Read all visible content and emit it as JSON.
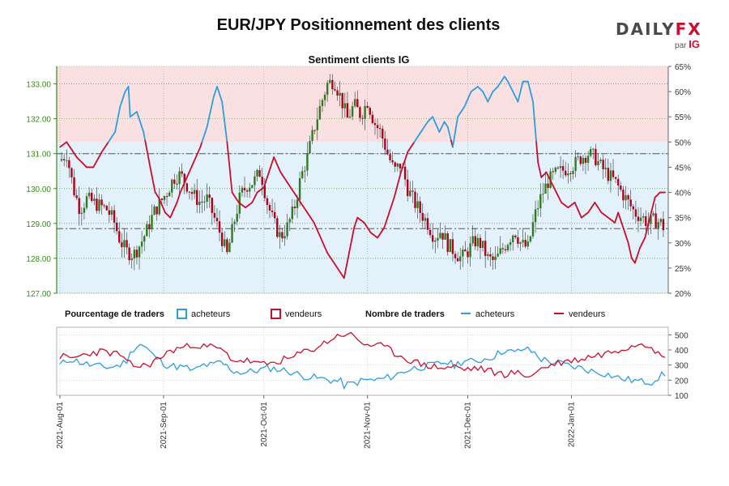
{
  "title": "EUR/JPY Positionnement des clients",
  "brand": {
    "word": "DAILY",
    "fx": "FX",
    "by": "par",
    "ig": "IG"
  },
  "colors": {
    "buyers": "#2d9ee0",
    "sellers": "#cc0e2c",
    "buy_fill": "#e3f1fb",
    "sell_fill": "#fbe0e2",
    "candle_up": "#2e7d1c",
    "candle_down": "#b3001b",
    "left_axis": "#3a8a1a"
  },
  "chart_data": [
    {
      "type": "candlestick+line",
      "subtitle": "Sentiment clients IG",
      "price_axis": {
        "ylim": [
          127,
          133.5
        ],
        "ticks": [
          "127.00",
          "128.00",
          "129.00",
          "130.00",
          "131.00",
          "132.00",
          "133.00"
        ]
      },
      "percent_axis": {
        "ylim": [
          20,
          65
        ],
        "ticks": [
          "20%",
          "25%",
          "30%",
          "35%",
          "40%",
          "45%",
          "50%",
          "55%",
          "60%",
          "65%"
        ]
      },
      "reference_lines": [
        {
          "value": 131.0,
          "style": "dash-dot"
        },
        {
          "value": 128.85,
          "style": "dash-dot"
        }
      ],
      "long_percent_key": [
        [
          0,
          49
        ],
        [
          4,
          50
        ],
        [
          10,
          47
        ],
        [
          16,
          45
        ],
        [
          20,
          45
        ],
        [
          25,
          48
        ],
        [
          27,
          49
        ],
        [
          33,
          52
        ],
        [
          36,
          57
        ],
        [
          39,
          60
        ],
        [
          41,
          61
        ],
        [
          42,
          55
        ],
        [
          46,
          56
        ],
        [
          50,
          52
        ],
        [
          54,
          45
        ],
        [
          57,
          40
        ],
        [
          59,
          39
        ],
        [
          63,
          36
        ],
        [
          66,
          35
        ],
        [
          70,
          38
        ],
        [
          72,
          40
        ],
        [
          76,
          43
        ],
        [
          80,
          46
        ],
        [
          84,
          49
        ],
        [
          88,
          53
        ],
        [
          92,
          59
        ],
        [
          94,
          61
        ],
        [
          97,
          58
        ],
        [
          100,
          50
        ],
        [
          103,
          40
        ],
        [
          107,
          38
        ],
        [
          111,
          37
        ],
        [
          115,
          38
        ],
        [
          118,
          40
        ],
        [
          122,
          41
        ],
        [
          126,
          45
        ],
        [
          128,
          47
        ],
        [
          132,
          44
        ],
        [
          136,
          42
        ],
        [
          140,
          40
        ],
        [
          144,
          38
        ],
        [
          148,
          36
        ],
        [
          152,
          34
        ],
        [
          156,
          31
        ],
        [
          160,
          28
        ],
        [
          164,
          26
        ],
        [
          168,
          24
        ],
        [
          170,
          23
        ],
        [
          173,
          28
        ],
        [
          176,
          33
        ],
        [
          178,
          35
        ],
        [
          182,
          34
        ],
        [
          186,
          32
        ],
        [
          190,
          31
        ],
        [
          194,
          33
        ],
        [
          200,
          39
        ],
        [
          204,
          44
        ],
        [
          208,
          48
        ],
        [
          212,
          50
        ],
        [
          216,
          52
        ],
        [
          220,
          54
        ],
        [
          223,
          55
        ],
        [
          227,
          52
        ],
        [
          230,
          54
        ],
        [
          232,
          53
        ],
        [
          235,
          49
        ],
        [
          238,
          55
        ],
        [
          242,
          57
        ],
        [
          246,
          60
        ],
        [
          250,
          61
        ],
        [
          253,
          60
        ],
        [
          256,
          58
        ],
        [
          259,
          60
        ],
        [
          262,
          61
        ],
        [
          266,
          63
        ],
        [
          268,
          62
        ],
        [
          271,
          60
        ],
        [
          274,
          58
        ],
        [
          277,
          62
        ],
        [
          280,
          62
        ],
        [
          283,
          58
        ],
        [
          286,
          46
        ],
        [
          288,
          43
        ],
        [
          291,
          44
        ],
        [
          294,
          42
        ],
        [
          297,
          40
        ],
        [
          300,
          38
        ],
        [
          304,
          37
        ],
        [
          308,
          38
        ],
        [
          312,
          35
        ],
        [
          316,
          36
        ],
        [
          320,
          38
        ],
        [
          324,
          36
        ],
        [
          328,
          35
        ],
        [
          332,
          34
        ],
        [
          334,
          36
        ],
        [
          337,
          33
        ],
        [
          340,
          30
        ],
        [
          342,
          27
        ],
        [
          344,
          26
        ],
        [
          347,
          29
        ],
        [
          350,
          31
        ],
        [
          353,
          35
        ],
        [
          356,
          39
        ],
        [
          359,
          40
        ],
        [
          362,
          40
        ]
      ],
      "candles_key": [
        [
          0,
          130.8
        ],
        [
          4,
          131.0
        ],
        [
          8,
          130.0
        ],
        [
          12,
          129.4
        ],
        [
          16,
          129.7
        ],
        [
          20,
          129.6
        ],
        [
          24,
          129.5
        ],
        [
          28,
          129.4
        ],
        [
          32,
          129.1
        ],
        [
          36,
          128.5
        ],
        [
          40,
          128.2
        ],
        [
          44,
          128.1
        ],
        [
          48,
          128.4
        ],
        [
          52,
          128.8
        ],
        [
          56,
          129.3
        ],
        [
          60,
          129.6
        ],
        [
          64,
          129.9
        ],
        [
          68,
          130.3
        ],
        [
          72,
          130.4
        ],
        [
          76,
          130.1
        ],
        [
          80,
          129.8
        ],
        [
          84,
          129.6
        ],
        [
          88,
          129.7
        ],
        [
          92,
          129.2
        ],
        [
          96,
          128.7
        ],
        [
          100,
          128.1
        ],
        [
          104,
          129.0
        ],
        [
          108,
          129.8
        ],
        [
          112,
          130.1
        ],
        [
          116,
          130.2
        ],
        [
          120,
          130.5
        ],
        [
          124,
          129.6
        ],
        [
          128,
          129.0
        ],
        [
          132,
          128.6
        ],
        [
          136,
          128.9
        ],
        [
          140,
          129.4
        ],
        [
          144,
          130.3
        ],
        [
          148,
          130.9
        ],
        [
          152,
          131.7
        ],
        [
          156,
          132.4
        ],
        [
          160,
          133.0
        ],
        [
          164,
          133.1
        ],
        [
          168,
          132.6
        ],
        [
          172,
          132.0
        ],
        [
          176,
          132.4
        ],
        [
          180,
          132.1
        ],
        [
          184,
          132.5
        ],
        [
          188,
          131.9
        ],
        [
          192,
          131.6
        ],
        [
          196,
          131.0
        ],
        [
          200,
          130.5
        ],
        [
          204,
          130.7
        ],
        [
          208,
          130.0
        ],
        [
          212,
          129.6
        ],
        [
          216,
          129.3
        ],
        [
          220,
          129.0
        ],
        [
          224,
          128.6
        ],
        [
          228,
          128.8
        ],
        [
          232,
          128.4
        ],
        [
          236,
          128.2
        ],
        [
          240,
          128.0
        ],
        [
          244,
          128.2
        ],
        [
          248,
          128.5
        ],
        [
          252,
          128.4
        ],
        [
          256,
          128.0
        ],
        [
          260,
          127.9
        ],
        [
          264,
          128.2
        ],
        [
          268,
          128.5
        ],
        [
          272,
          128.8
        ],
        [
          276,
          128.4
        ],
        [
          280,
          128.3
        ],
        [
          284,
          129.2
        ],
        [
          288,
          129.8
        ],
        [
          292,
          130.2
        ],
        [
          296,
          130.4
        ],
        [
          300,
          130.5
        ],
        [
          304,
          130.6
        ],
        [
          308,
          130.7
        ],
        [
          312,
          130.9
        ],
        [
          316,
          131.0
        ],
        [
          320,
          130.9
        ],
        [
          324,
          130.6
        ],
        [
          328,
          130.4
        ],
        [
          332,
          130.2
        ],
        [
          336,
          129.9
        ],
        [
          340,
          129.6
        ],
        [
          344,
          129.3
        ],
        [
          348,
          129.2
        ],
        [
          352,
          129.0
        ],
        [
          356,
          129.1
        ],
        [
          360,
          129.0
        ],
        [
          362,
          128.8
        ]
      ]
    },
    {
      "type": "line",
      "legend_left": {
        "title": "Pourcentage de traders",
        "buyers": "acheteurs",
        "sellers": "vendeurs"
      },
      "legend_right": {
        "title": "Nombre de traders",
        "buyers": "acheteurs",
        "sellers": "vendeurs"
      },
      "count_axis": {
        "ylim": [
          100,
          550
        ],
        "ticks": [
          "100",
          "200",
          "300",
          "400",
          "500"
        ]
      },
      "buyers_key": [
        [
          0,
          300
        ],
        [
          6,
          340
        ],
        [
          12,
          320
        ],
        [
          18,
          300
        ],
        [
          24,
          290
        ],
        [
          30,
          285
        ],
        [
          36,
          300
        ],
        [
          40,
          330
        ],
        [
          44,
          410
        ],
        [
          48,
          440
        ],
        [
          52,
          410
        ],
        [
          56,
          360
        ],
        [
          60,
          330
        ],
        [
          64,
          300
        ],
        [
          70,
          290
        ],
        [
          76,
          280
        ],
        [
          80,
          260
        ],
        [
          86,
          300
        ],
        [
          92,
          300
        ],
        [
          96,
          320
        ],
        [
          100,
          290
        ],
        [
          104,
          260
        ],
        [
          110,
          250
        ],
        [
          116,
          260
        ],
        [
          120,
          270
        ],
        [
          126,
          280
        ],
        [
          132,
          270
        ],
        [
          136,
          260
        ],
        [
          140,
          250
        ],
        [
          144,
          230
        ],
        [
          150,
          220
        ],
        [
          156,
          210
        ],
        [
          162,
          200
        ],
        [
          168,
          190
        ],
        [
          170,
          165
        ],
        [
          176,
          180
        ],
        [
          182,
          200
        ],
        [
          188,
          200
        ],
        [
          194,
          210
        ],
        [
          200,
          230
        ],
        [
          206,
          260
        ],
        [
          212,
          280
        ],
        [
          218,
          290
        ],
        [
          224,
          300
        ],
        [
          230,
          320
        ],
        [
          236,
          300
        ],
        [
          242,
          330
        ],
        [
          248,
          320
        ],
        [
          254,
          340
        ],
        [
          260,
          360
        ],
        [
          266,
          400
        ],
        [
          272,
          380
        ],
        [
          278,
          410
        ],
        [
          284,
          380
        ],
        [
          288,
          340
        ],
        [
          294,
          320
        ],
        [
          300,
          310
        ],
        [
          306,
          290
        ],
        [
          312,
          280
        ],
        [
          318,
          260
        ],
        [
          324,
          250
        ],
        [
          330,
          230
        ],
        [
          336,
          210
        ],
        [
          342,
          200
        ],
        [
          348,
          190
        ],
        [
          354,
          190
        ],
        [
          358,
          220
        ],
        [
          362,
          240
        ]
      ],
      "sellers_key": [
        [
          0,
          360
        ],
        [
          6,
          340
        ],
        [
          12,
          360
        ],
        [
          18,
          380
        ],
        [
          24,
          390
        ],
        [
          30,
          380
        ],
        [
          36,
          370
        ],
        [
          40,
          310
        ],
        [
          44,
          300
        ],
        [
          48,
          290
        ],
        [
          52,
          300
        ],
        [
          56,
          320
        ],
        [
          60,
          350
        ],
        [
          64,
          380
        ],
        [
          70,
          410
        ],
        [
          76,
          420
        ],
        [
          80,
          440
        ],
        [
          86,
          420
        ],
        [
          92,
          420
        ],
        [
          96,
          400
        ],
        [
          100,
          370
        ],
        [
          104,
          330
        ],
        [
          110,
          330
        ],
        [
          116,
          320
        ],
        [
          120,
          300
        ],
        [
          126,
          310
        ],
        [
          132,
          330
        ],
        [
          136,
          340
        ],
        [
          140,
          350
        ],
        [
          144,
          380
        ],
        [
          150,
          400
        ],
        [
          156,
          430
        ],
        [
          162,
          470
        ],
        [
          168,
          500
        ],
        [
          172,
          510
        ],
        [
          178,
          470
        ],
        [
          182,
          440
        ],
        [
          188,
          430
        ],
        [
          194,
          420
        ],
        [
          200,
          380
        ],
        [
          206,
          350
        ],
        [
          212,
          320
        ],
        [
          218,
          300
        ],
        [
          224,
          290
        ],
        [
          230,
          280
        ],
        [
          236,
          290
        ],
        [
          242,
          270
        ],
        [
          248,
          280
        ],
        [
          254,
          270
        ],
        [
          260,
          250
        ],
        [
          266,
          240
        ],
        [
          272,
          250
        ],
        [
          278,
          230
        ],
        [
          284,
          240
        ],
        [
          288,
          280
        ],
        [
          294,
          300
        ],
        [
          300,
          320
        ],
        [
          306,
          330
        ],
        [
          312,
          340
        ],
        [
          318,
          360
        ],
        [
          324,
          370
        ],
        [
          330,
          390
        ],
        [
          336,
          410
        ],
        [
          342,
          430
        ],
        [
          348,
          450
        ],
        [
          354,
          430
        ],
        [
          358,
          370
        ],
        [
          362,
          340
        ]
      ]
    }
  ],
  "x_axis": {
    "labels": [
      "2021-Aug-01",
      "2021-Sep-01",
      "2021-Oct-01",
      "2021-Nov-01",
      "2021-Dec-01",
      "2022-Jan-01"
    ],
    "days": [
      0,
      31,
      61,
      92,
      122,
      153
    ],
    "span_days": 181
  }
}
